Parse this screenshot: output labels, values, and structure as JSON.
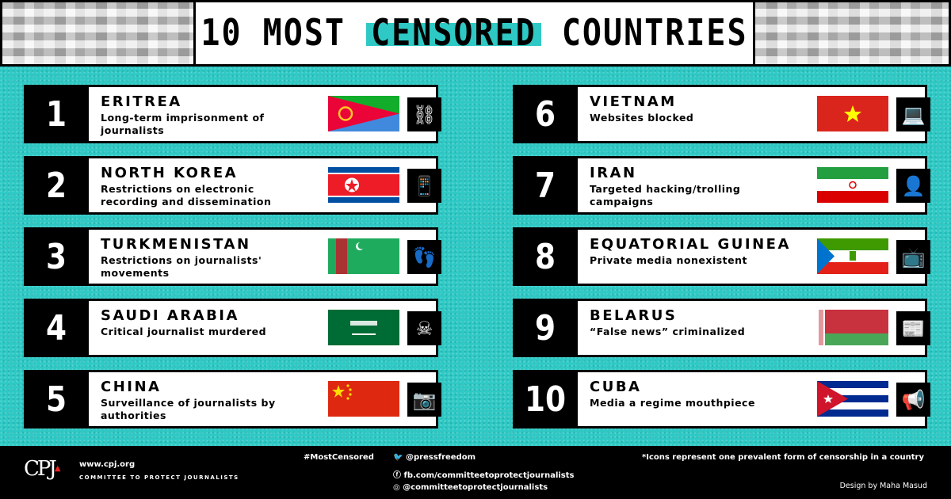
{
  "title": {
    "before": "10 MOST",
    "highlight": "CENSORED",
    "after": "COUNTRIES"
  },
  "accent": "#2ec9c4",
  "countries": [
    {
      "rank": "1",
      "name": "ERITREA",
      "desc": "Long-term imprisonment of journalists",
      "flag": "eritrea",
      "icon": "prison-bars-icon",
      "glyph": "⛓"
    },
    {
      "rank": "2",
      "name": "NORTH KOREA",
      "desc": "Restrictions on electronic recording and dissemination",
      "flag": "north-korea",
      "icon": "phone-recorder-icon",
      "glyph": "📱"
    },
    {
      "rank": "3",
      "name": "TURKMENISTAN",
      "desc": "Restrictions on journalists' movements",
      "flag": "turkmenistan",
      "icon": "footprints-icon",
      "glyph": "👣"
    },
    {
      "rank": "4",
      "name": "SAUDI ARABIA",
      "desc": "Critical journalist murdered",
      "flag": "saudi-arabia",
      "icon": "body-outline-icon",
      "glyph": "☠"
    },
    {
      "rank": "5",
      "name": "CHINA",
      "desc": "Surveillance of journalists by authorities",
      "flag": "china",
      "icon": "camera-tripod-icon",
      "glyph": "📷"
    },
    {
      "rank": "6",
      "name": "VIETNAM",
      "desc": "Websites blocked",
      "flag": "vietnam",
      "icon": "locked-laptop-icon",
      "glyph": "💻"
    },
    {
      "rank": "7",
      "name": "IRAN",
      "desc": "Targeted hacking/trolling campaigns",
      "flag": "iran",
      "icon": "hacker-icon",
      "glyph": "👤"
    },
    {
      "rank": "8",
      "name": "EQUATORIAL GUINEA",
      "desc": "Private media nonexistent",
      "flag": "equatorial-guinea",
      "icon": "news-anchor-icon",
      "glyph": "📺"
    },
    {
      "rank": "9",
      "name": "BELARUS",
      "desc": "“False news” criminalized",
      "flag": "belarus",
      "icon": "fake-news-icon",
      "glyph": "📰"
    },
    {
      "rank": "10",
      "name": "CUBA",
      "desc": "Media a regime mouthpiece",
      "flag": "cuba",
      "icon": "megaphone-icon",
      "glyph": "📢"
    }
  ],
  "footer": {
    "logo": "CPJ",
    "website": "www.cpj.org",
    "org": "COMMITTEE TO PROTECT JOURNALISTS",
    "hashtag": "#MostCensored",
    "twitter": "@pressfreedom",
    "facebook": "fb.com/committeetoprotectjournalists",
    "instagram": "@committeetoprotectjournalists",
    "note": "*Icons represent one prevalent form of censorship in a country",
    "credit": "Design by Maha Masud"
  }
}
